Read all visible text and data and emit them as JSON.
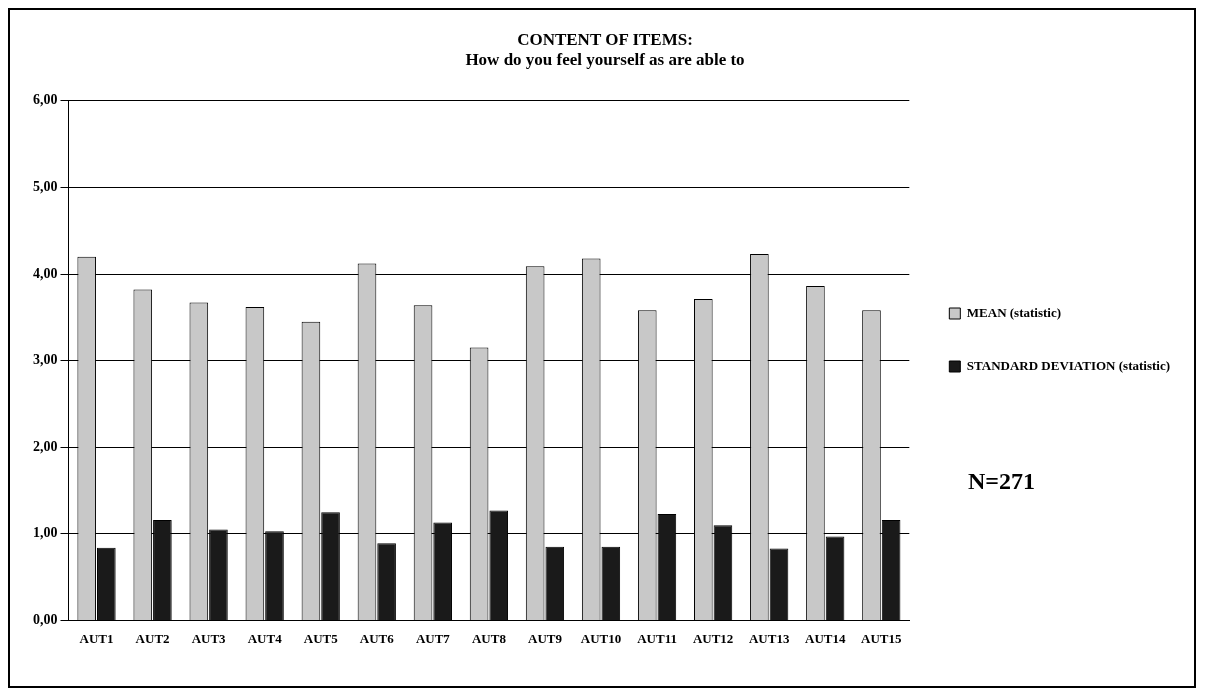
{
  "chart_data": {
    "type": "bar",
    "title": [
      "CONTENT OF ITEMS:",
      "How do you feel yourself as are able to"
    ],
    "categories": [
      "AUT1",
      "AUT2",
      "AUT3",
      "AUT4",
      "AUT5",
      "AUT6",
      "AUT7",
      "AUT8",
      "AUT9",
      "AUT10",
      "AUT11",
      "AUT12",
      "AUT13",
      "AUT14",
      "AUT15"
    ],
    "series": [
      {
        "name": "MEAN (statistic)",
        "color": "#c8c8c8",
        "values": [
          4.2,
          3.82,
          3.67,
          3.62,
          3.45,
          4.12,
          3.64,
          3.15,
          4.09,
          4.18,
          3.58,
          3.71,
          4.23,
          3.86,
          3.58
        ]
      },
      {
        "name": "STANDARD DEVIATION (statistic)",
        "color": "#1a1a1a",
        "values": [
          0.84,
          1.16,
          1.05,
          1.03,
          1.25,
          0.89,
          1.13,
          1.27,
          0.85,
          0.85,
          1.23,
          1.1,
          0.83,
          0.97,
          1.16
        ]
      }
    ],
    "ylim": [
      0,
      6
    ],
    "yticks": [
      {
        "value": 0,
        "label": "0,00"
      },
      {
        "value": 1,
        "label": "1,00"
      },
      {
        "value": 2,
        "label": "2,00"
      },
      {
        "value": 3,
        "label": "3,00"
      },
      {
        "value": 4,
        "label": "4,00"
      },
      {
        "value": 5,
        "label": "5,00"
      },
      {
        "value": 6,
        "label": "6,00"
      }
    ],
    "grid": "y",
    "legend": "right",
    "annotations": [
      "N=271"
    ]
  }
}
